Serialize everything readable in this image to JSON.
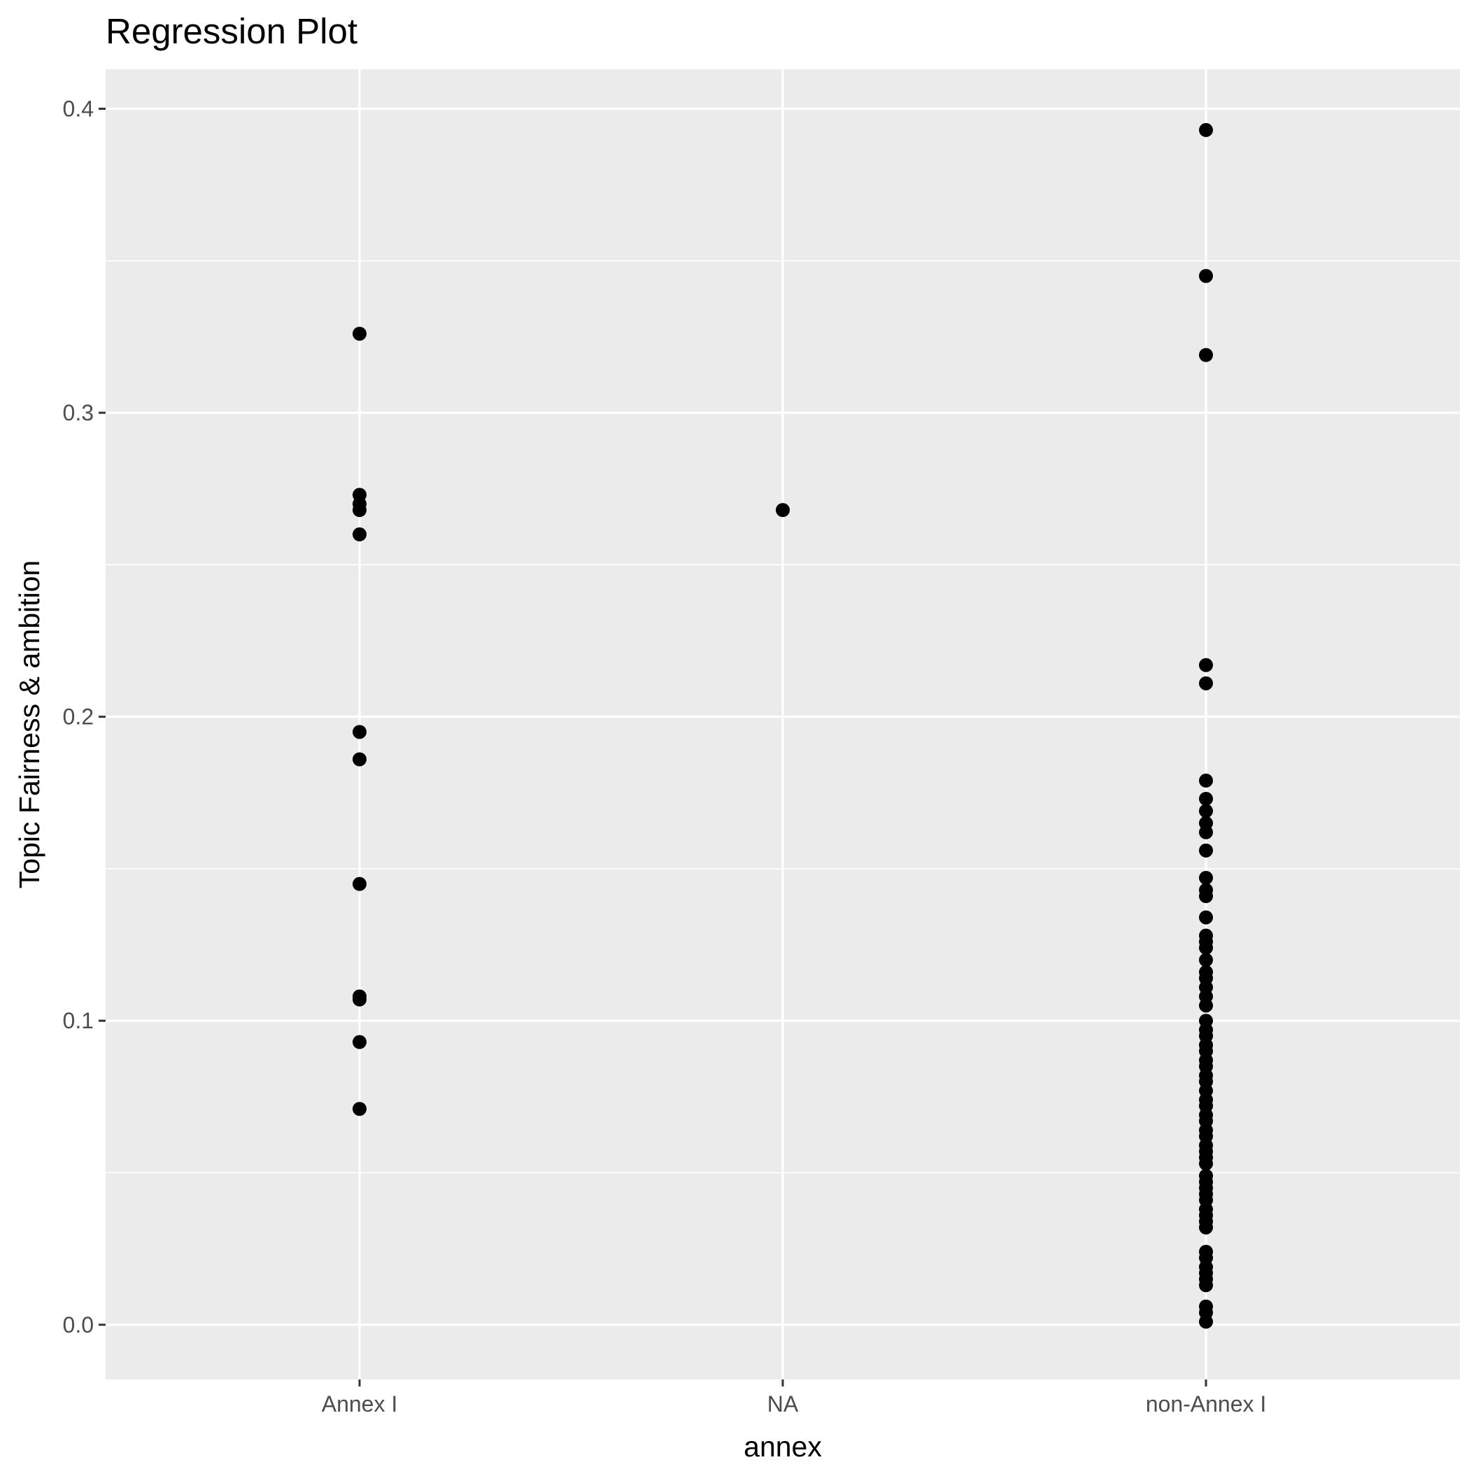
{
  "chart_data": {
    "type": "scatter",
    "title": "Regression Plot",
    "xlabel": "annex",
    "ylabel": "Topic Fairness & ambition",
    "categories": [
      "Annex I",
      "NA",
      "non-Annex I"
    ],
    "y_ticks": [
      0.0,
      0.1,
      0.2,
      0.3,
      0.4
    ],
    "y_tick_labels": [
      "0.0",
      "0.1",
      "0.2",
      "0.3",
      "0.4"
    ],
    "ylim": [
      -0.018,
      0.413
    ],
    "grid": true,
    "legend": "none",
    "colors": {
      "panel": "#ebebeb",
      "grid": "#ffffff",
      "point": "#000000",
      "tick": "#4d4d4d"
    },
    "series": [
      {
        "category": "Annex I",
        "values": [
          0.326,
          0.273,
          0.27,
          0.268,
          0.26,
          0.195,
          0.186,
          0.145,
          0.108,
          0.107,
          0.093,
          0.071
        ]
      },
      {
        "category": "NA",
        "values": [
          0.268
        ]
      },
      {
        "category": "non-Annex I",
        "values": [
          0.393,
          0.345,
          0.319,
          0.217,
          0.211,
          0.179,
          0.173,
          0.169,
          0.165,
          0.162,
          0.156,
          0.147,
          0.143,
          0.141,
          0.134,
          0.128,
          0.126,
          0.124,
          0.12,
          0.116,
          0.114,
          0.111,
          0.108,
          0.105,
          0.1,
          0.097,
          0.095,
          0.092,
          0.09,
          0.087,
          0.085,
          0.082,
          0.08,
          0.077,
          0.074,
          0.072,
          0.069,
          0.067,
          0.064,
          0.062,
          0.059,
          0.057,
          0.055,
          0.053,
          0.049,
          0.047,
          0.045,
          0.043,
          0.041,
          0.038,
          0.036,
          0.034,
          0.032,
          0.024,
          0.022,
          0.019,
          0.017,
          0.015,
          0.013,
          0.006,
          0.004,
          0.001
        ]
      }
    ]
  }
}
